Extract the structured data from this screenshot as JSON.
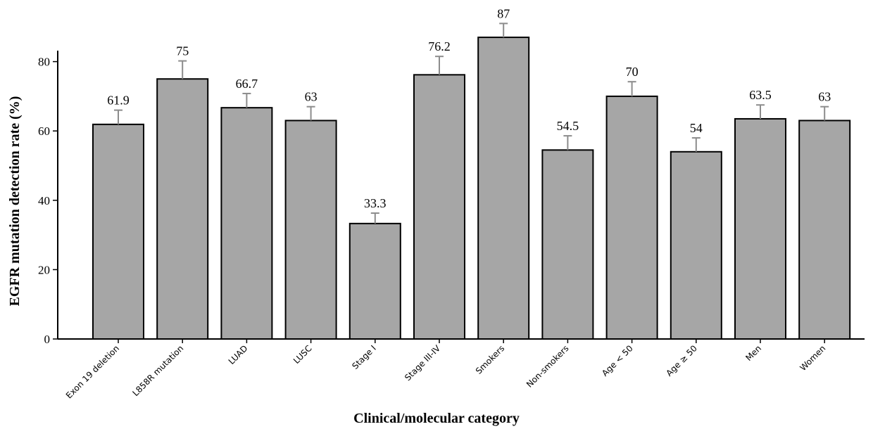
{
  "chart_data": {
    "type": "bar",
    "xlabel": "Clinical/molecular category",
    "ylabel": "EGFR mutation detection rate (%)",
    "ylim": [
      0,
      95
    ],
    "yticks": [
      0,
      20,
      40,
      60,
      80
    ],
    "categories": [
      "Exon 19 deletion",
      "L858R mutation",
      "LUAD",
      "LUSC",
      "Stage I",
      "Stage III-IV",
      "Smokers",
      "Non-smokers",
      "Age < 50",
      "Age ≥ 50",
      "Men",
      "Women"
    ],
    "values": [
      61.9,
      75,
      66.7,
      63,
      33.3,
      76.2,
      87,
      54.5,
      70,
      54,
      63.5,
      63
    ],
    "labels": [
      "61.9",
      "75",
      "66.7",
      "63",
      "33.3",
      "76.2",
      "87",
      "54.5",
      "70",
      "54",
      "63.5",
      "63"
    ],
    "error_upper": [
      66,
      80.2,
      70.8,
      67,
      36.3,
      81.5,
      91,
      58.6,
      74.2,
      58,
      67.5,
      67
    ],
    "grid": false,
    "bar_color": "#a6a6a6",
    "error_color": "#8c8c8c"
  }
}
